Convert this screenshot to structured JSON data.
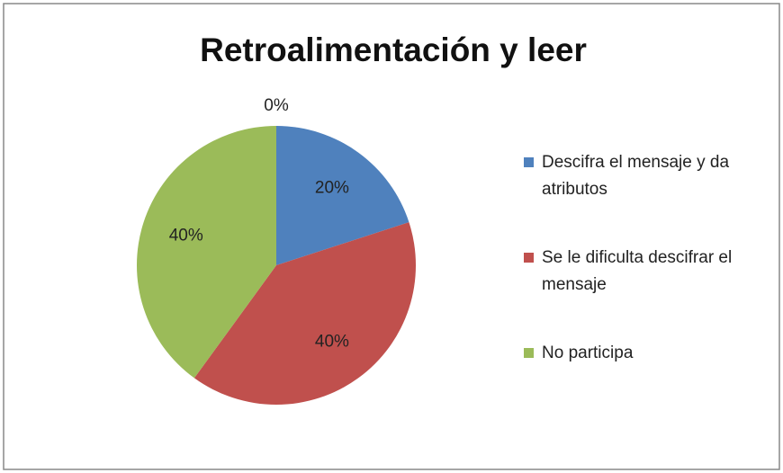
{
  "chart_data": {
    "type": "pie",
    "title": "Retroalimentación y leer",
    "categories": [
      "Descifra el mensaje y da atributos",
      "Se le dificulta descifrar el mensaje",
      "No participa",
      null
    ],
    "values": [
      20,
      40,
      40,
      0
    ],
    "value_labels": [
      "20%",
      "40%",
      "40%",
      "0%"
    ],
    "colors": [
      "#4f81bd",
      "#c0504d",
      "#9bbb59",
      "#8064a2"
    ],
    "legend": "right"
  }
}
